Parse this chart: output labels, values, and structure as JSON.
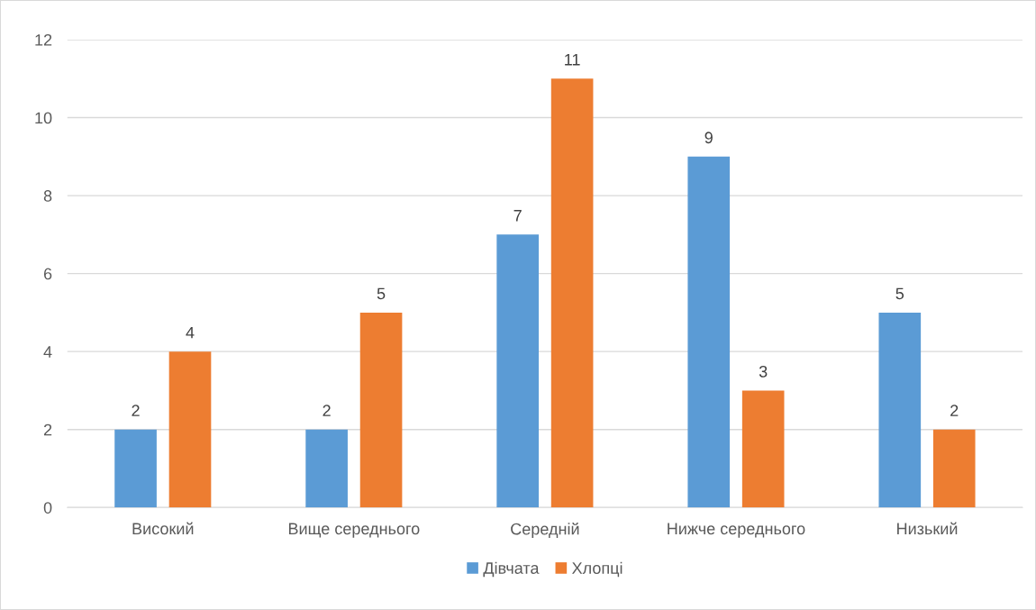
{
  "chart_data": {
    "type": "bar",
    "categories": [
      "Високий",
      "Вище середнього",
      "Середній",
      "Нижче середнього",
      "Низький"
    ],
    "series": [
      {
        "name": "Дівчата",
        "color": "#5b9bd5",
        "values": [
          2,
          2,
          7,
          9,
          5
        ]
      },
      {
        "name": "Хлопці",
        "color": "#ed7d31",
        "values": [
          4,
          5,
          11,
          3,
          2
        ]
      }
    ],
    "ylim": [
      0,
      12
    ],
    "yticks": [
      0,
      2,
      4,
      6,
      8,
      10,
      12
    ],
    "grid": "y",
    "legend": "bottom",
    "data_labels": true
  }
}
